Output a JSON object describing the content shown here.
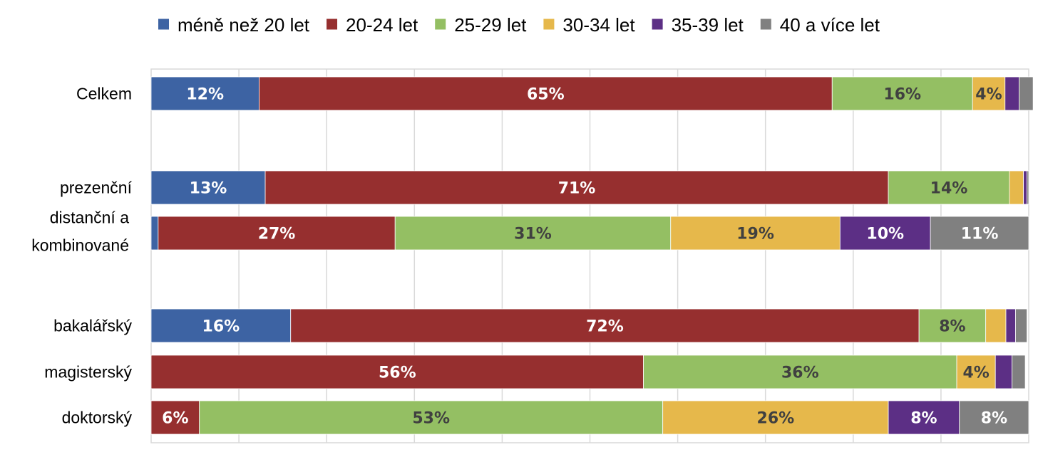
{
  "chart_data": {
    "type": "bar",
    "orientation": "horizontal",
    "stacked": true,
    "normalized": true,
    "title": "",
    "xlabel": "",
    "ylabel": "",
    "xlim": [
      0,
      100
    ],
    "grid": true,
    "legend_position": "top",
    "categories": [
      "Celkem",
      "prezenční",
      "distanční a kombinované",
      "bakalářský",
      "magisterský",
      "doktorský"
    ],
    "category_lines": [
      [
        "Celkem"
      ],
      [
        "prezenční"
      ],
      [
        "distanční a",
        "kombinované"
      ],
      [
        "bakalářský"
      ],
      [
        "magisterský"
      ],
      [
        "doktorský"
      ]
    ],
    "series": [
      {
        "name": "méně než 20 let",
        "color": "#3d63a3",
        "label_color": "#ffffff",
        "values": [
          12.3,
          13.0,
          0.8,
          15.9,
          0,
          0
        ],
        "labels": [
          "12%",
          "13%",
          "",
          "16%",
          "",
          ""
        ]
      },
      {
        "name": "20-24 let",
        "color": "#962f2f",
        "label_color": "#ffffff",
        "values": [
          65.3,
          71.0,
          27.0,
          71.6,
          56.1,
          5.5
        ],
        "labels": [
          "65%",
          "71%",
          "27%",
          "72%",
          "56%",
          "6%"
        ]
      },
      {
        "name": "25-29 let",
        "color": "#94bf63",
        "label_color": "#404040",
        "values": [
          16.0,
          13.8,
          31.4,
          7.6,
          35.7,
          52.8
        ],
        "labels": [
          "16%",
          "14%",
          "31%",
          "8%",
          "36%",
          "53%"
        ]
      },
      {
        "name": "30-34 let",
        "color": "#e6b84b",
        "label_color": "#404040",
        "values": [
          3.7,
          1.6,
          19.3,
          2.3,
          4.4,
          25.7
        ],
        "labels": [
          "4%",
          "",
          "19%",
          "",
          "4%",
          "26%"
        ]
      },
      {
        "name": "35-39 let",
        "color": "#5c2f85",
        "label_color": "#ffffff",
        "values": [
          1.6,
          0.4,
          10.3,
          1.1,
          1.9,
          8.1
        ],
        "labels": [
          "",
          "",
          "10%",
          "",
          "",
          "8%"
        ]
      },
      {
        "name": "40 a více let",
        "color": "#808080",
        "label_color": "#ffffff",
        "values": [
          1.6,
          0.2,
          11.2,
          1.3,
          1.5,
          7.9
        ],
        "labels": [
          "",
          "",
          "11%",
          "",
          "",
          "8%"
        ]
      }
    ]
  }
}
